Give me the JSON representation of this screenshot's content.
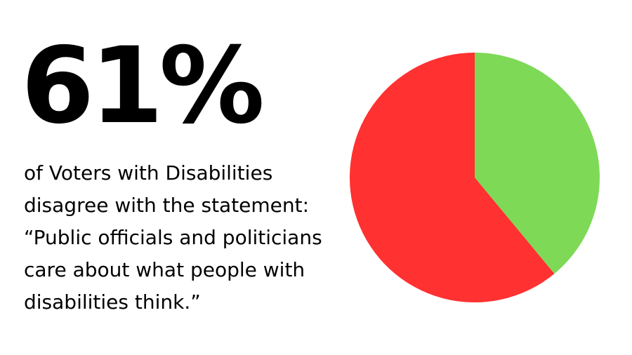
{
  "headline": "61%",
  "statement_lines": [
    "of Voters with Disabilities",
    "disagree with the statement:",
    "“Public officials and politicians",
    "care about what people with",
    "disabilities think.”"
  ],
  "chart_data": {
    "type": "pie",
    "title": "",
    "slices": [
      {
        "label": "",
        "value": 39,
        "color": "#7ED957"
      },
      {
        "label": "",
        "value": 61,
        "color": "#FF3131"
      }
    ],
    "start_angle_deg": 0,
    "direction": "clockwise",
    "legend": "none"
  }
}
